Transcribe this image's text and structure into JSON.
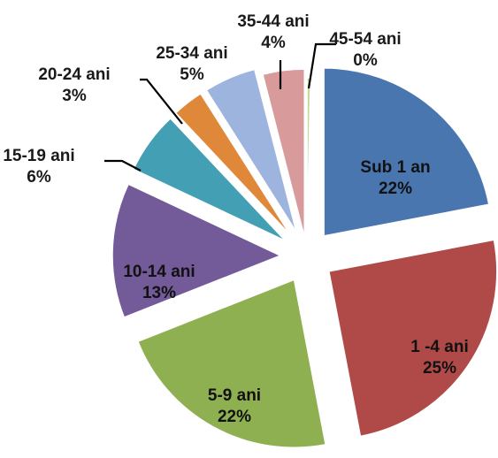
{
  "chart_data": {
    "type": "pie",
    "exploded": true,
    "title": "",
    "slices": [
      {
        "label": "Sub 1 an",
        "value": 22,
        "display": "22%",
        "color": "#4a76b0"
      },
      {
        "label": "1 -4 ani",
        "value": 25,
        "display": "25%",
        "color": "#b04a48"
      },
      {
        "label": "5-9 ani",
        "value": 22,
        "display": "22%",
        "color": "#8eb050"
      },
      {
        "label": "10-14 ani",
        "value": 13,
        "display": "13%",
        "color": "#735a98"
      },
      {
        "label": "15-19 ani",
        "value": 6,
        "display": "6%",
        "color": "#43a0b4"
      },
      {
        "label": "20-24 ani",
        "value": 3,
        "display": "3%",
        "color": "#e0883a"
      },
      {
        "label": "25-34 ani",
        "value": 5,
        "display": "5%",
        "color": "#9db4de"
      },
      {
        "label": "35-44 ani",
        "value": 4,
        "display": "4%",
        "color": "#d89a9a"
      },
      {
        "label": "45-54 ani",
        "value": 0,
        "display": "0%",
        "color": "#c3d89b"
      }
    ],
    "legend": "none",
    "data_labels": "category and percentage"
  }
}
